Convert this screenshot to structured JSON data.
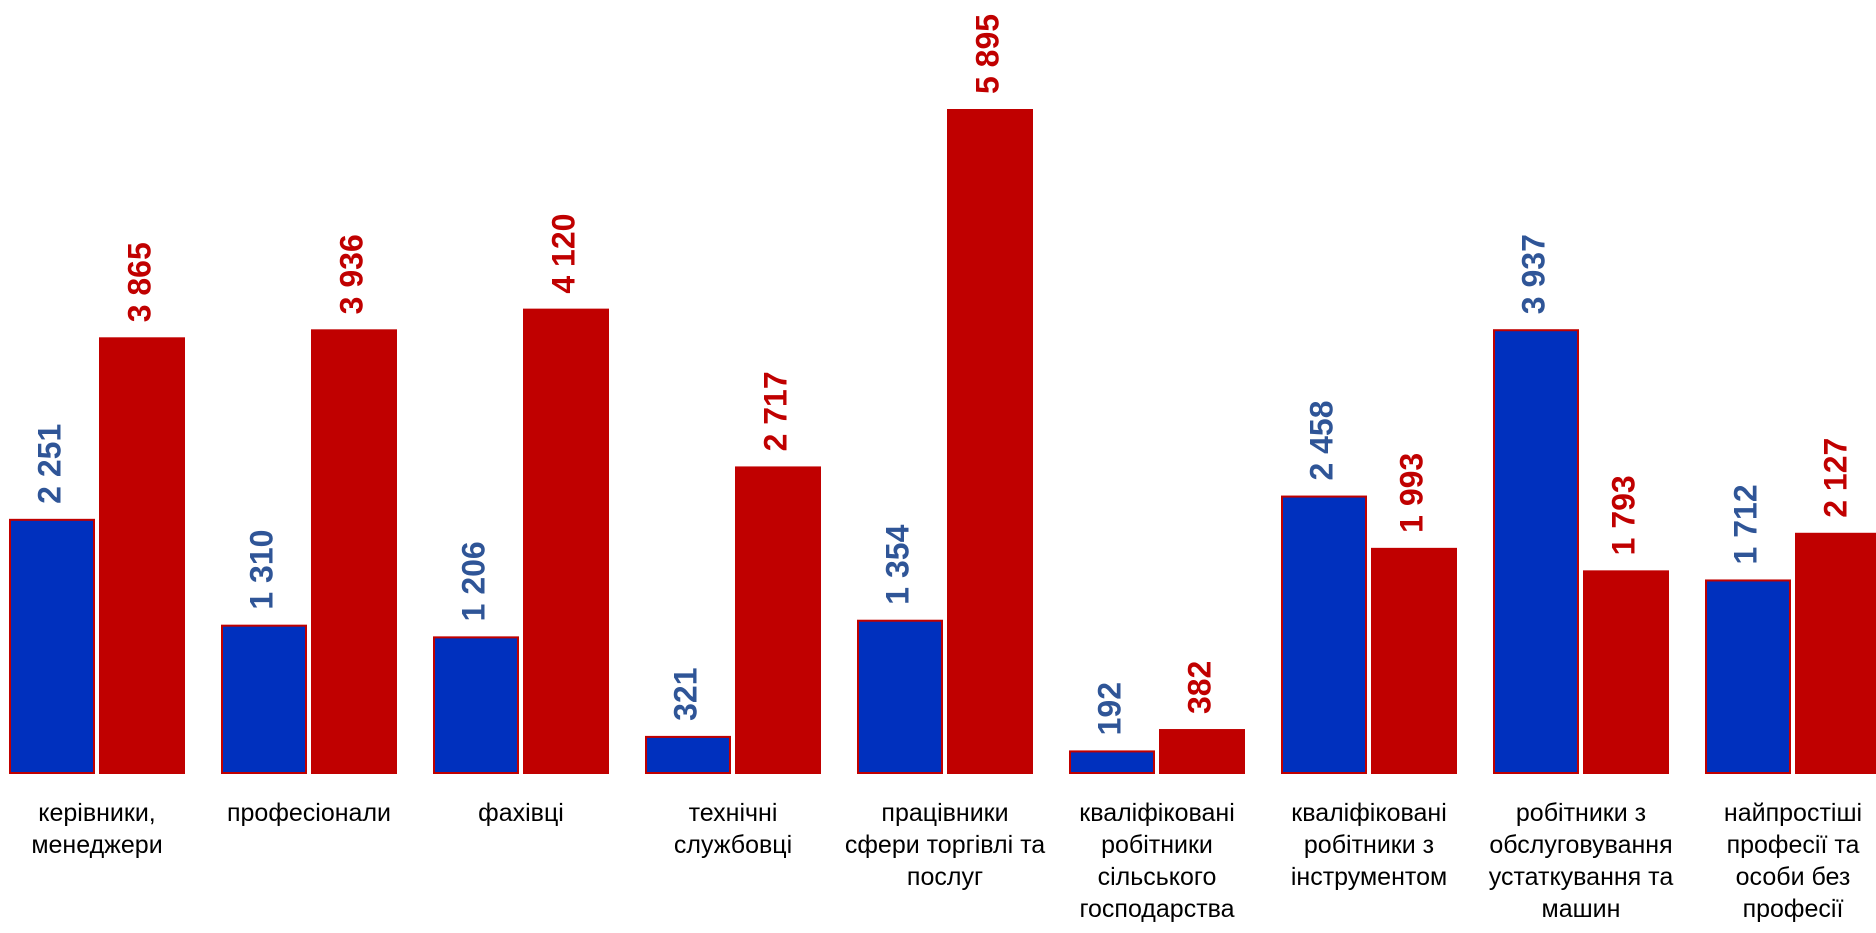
{
  "chart_data": {
    "type": "bar",
    "title": "",
    "xlabel": "",
    "ylabel": "",
    "ylim": [
      0,
      6500
    ],
    "grid": false,
    "legend": "none",
    "categories": [
      [
        "керівники,",
        "менеджери"
      ],
      [
        "професіонали"
      ],
      [
        "фахівці"
      ],
      [
        "технічні",
        "службовці"
      ],
      [
        "працівники",
        "сфери торгівлі та",
        "послуг"
      ],
      [
        "кваліфіковані",
        "робітники",
        "сільського",
        "господарства"
      ],
      [
        "кваліфіковані",
        "робітники з",
        "інструментом"
      ],
      [
        "робітники з",
        "обслуговування",
        "устаткування та",
        "машин"
      ],
      [
        "найпростіші",
        "професії та",
        "особи без",
        "професії"
      ]
    ],
    "series": [
      {
        "color": "#0030BE",
        "label_color": "#2F5597",
        "values": [
          2251,
          1310,
          1206,
          321,
          1354,
          192,
          2458,
          3937,
          1712
        ],
        "labels": [
          "2 251",
          "1 310",
          "1 206",
          "321",
          "1 354",
          "192",
          "2 458",
          "3 937",
          "1 712"
        ]
      },
      {
        "color": "#C00000",
        "label_color": "#C00000",
        "values": [
          3865,
          3936,
          4120,
          2717,
          5895,
          382,
          1993,
          1793,
          2127
        ],
        "labels": [
          "3 865",
          "3 936",
          "4 120",
          "2 717",
          "5 895",
          "382",
          "1 993",
          "1 793",
          "2 127"
        ]
      }
    ]
  }
}
